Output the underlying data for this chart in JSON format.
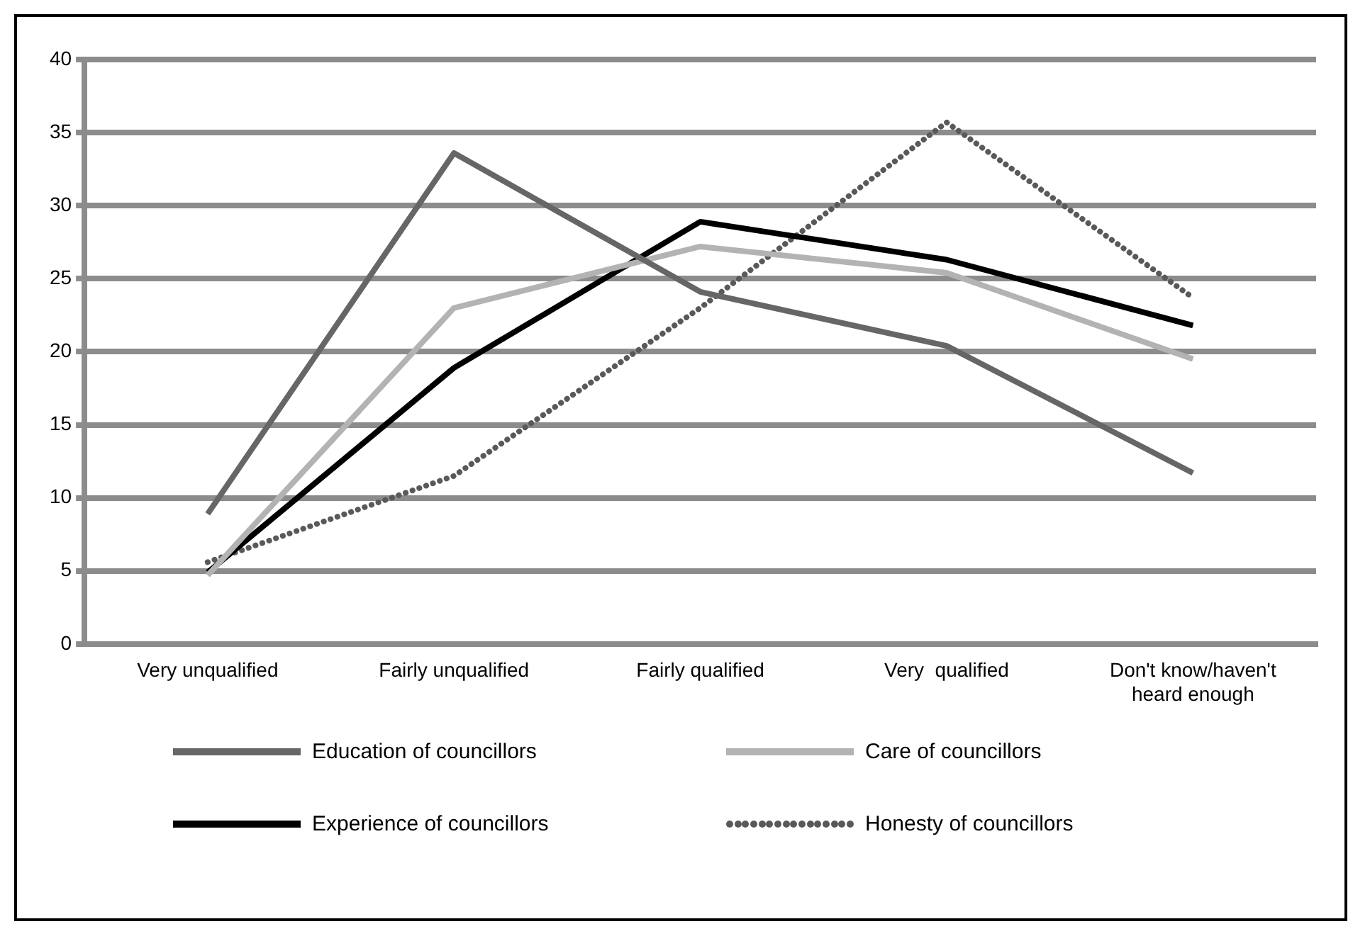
{
  "chart_data": {
    "type": "line",
    "categories": [
      "Very unqualified",
      "Fairly unqualified",
      "Fairly qualified",
      "Very  qualified",
      "Don't know/haven't heard enough"
    ],
    "series": [
      {
        "name": "Education of councillors",
        "color": "#666666",
        "values": [
          8.9,
          33.6,
          24.1,
          20.4,
          11.7
        ]
      },
      {
        "name": "Care of councillors",
        "color": "#b3b3b3",
        "values": [
          4.7,
          23.0,
          27.2,
          25.4,
          19.5
        ]
      },
      {
        "name": "Experience of councillors",
        "color": "#000000",
        "values": [
          4.9,
          18.9,
          28.9,
          26.3,
          21.8
        ]
      },
      {
        "name": "Honesty of councillors",
        "color": "#595959",
        "values": [
          5.6,
          11.5,
          23.0,
          35.7,
          23.7
        ],
        "line_style": "dotted"
      }
    ],
    "ylim": [
      0,
      40
    ],
    "yticks": [
      0,
      5,
      10,
      15,
      20,
      25,
      30,
      35,
      40
    ],
    "grid": "y",
    "legend": "bottom",
    "marker": "none"
  }
}
